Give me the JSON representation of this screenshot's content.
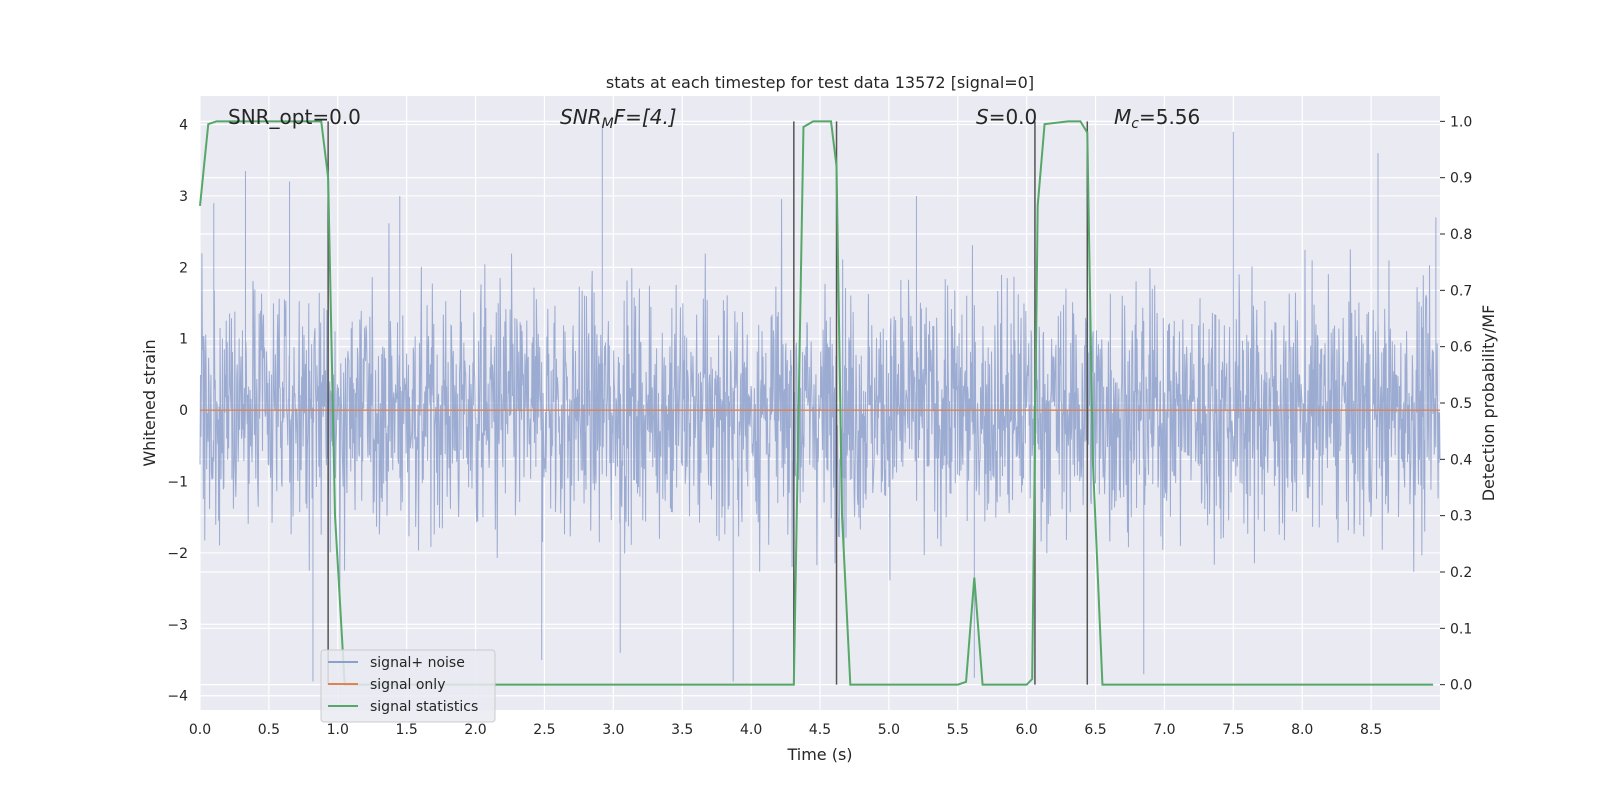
{
  "chart_data": {
    "type": "line",
    "title": "stats at each timestep for test data 13572 [signal=0]",
    "xlabel": "Time (s)",
    "ylabel": "Whitened strain",
    "y2label": "Detection probability/MF",
    "xlim": [
      0.0,
      9.0
    ],
    "ylim": [
      -4.2,
      4.4
    ],
    "y2lim": [
      -0.045,
      1.045
    ],
    "xticks": [
      "0.0",
      "0.5",
      "1.0",
      "1.5",
      "2.0",
      "2.5",
      "3.0",
      "3.5",
      "4.0",
      "4.5",
      "5.0",
      "5.5",
      "6.0",
      "6.5",
      "7.0",
      "7.5",
      "8.0",
      "8.5"
    ],
    "yticks": [
      "4",
      "3",
      "2",
      "1",
      "0",
      "−1",
      "−2",
      "−3",
      "−4"
    ],
    "y2ticks": [
      "1.0",
      "0.9",
      "0.8",
      "0.7",
      "0.6",
      "0.5",
      "0.4",
      "0.3",
      "0.2",
      "0.1",
      "0.0"
    ],
    "annotations": {
      "snr_opt": "SNR_opt=0.0",
      "snr_mf_base": "SNR",
      "snr_mf_sub": "M",
      "snr_mf_rest": "F=[4.]",
      "s_sym": "S",
      "s_val": "=0.0",
      "mc_sym": "M",
      "mc_sub": "c",
      "mc_val": "=5.56"
    },
    "vertical_lines_x": [
      0.93,
      4.31,
      4.62,
      6.06,
      6.44
    ],
    "series": [
      {
        "name": "signal+ noise",
        "color": "#8da0cb",
        "note_range": [
          -3.8,
          4.0
        ],
        "peaks": [
          [
            0.1,
            2.9
          ],
          [
            0.33,
            3.35
          ],
          [
            0.65,
            3.2
          ],
          [
            2.92,
            4.0
          ],
          [
            3.87,
            -3.8
          ],
          [
            7.5,
            3.9
          ],
          [
            8.55,
            3.6
          ],
          [
            8.97,
            2.7
          ],
          [
            6.85,
            -3.7
          ],
          [
            5.62,
            -3.75
          ],
          [
            3.05,
            -3.4
          ],
          [
            2.48,
            -3.5
          ],
          [
            0.82,
            -3.8
          ],
          [
            1.45,
            3.0
          ],
          [
            5.2,
            3.0
          ]
        ]
      },
      {
        "name": "signal only",
        "color": "#dd8452",
        "values_constant": 0.0
      },
      {
        "name": "signal statistics",
        "color": "#55a868",
        "x": [
          0.0,
          0.06,
          0.12,
          0.5,
          0.88,
          0.93,
          0.98,
          1.05,
          2.0,
          3.0,
          4.0,
          4.31,
          4.38,
          4.45,
          4.58,
          4.62,
          4.66,
          4.72,
          5.0,
          5.5,
          5.56,
          5.62,
          5.68,
          6.0,
          6.04,
          6.08,
          6.13,
          6.3,
          6.39,
          6.44,
          6.48,
          6.55,
          7.0,
          8.0,
          8.95
        ],
        "y": [
          0.85,
          0.995,
          1.0,
          1.0,
          1.0,
          0.9,
          0.3,
          0.0,
          0.0,
          0.0,
          0.0,
          0.0,
          0.99,
          1.0,
          1.0,
          0.92,
          0.3,
          0.0,
          0.0,
          0.0,
          0.005,
          0.19,
          0.0,
          0.0,
          0.01,
          0.85,
          0.995,
          1.0,
          1.0,
          0.98,
          0.4,
          0.0,
          0.0,
          0.0,
          0.0
        ]
      }
    ],
    "legend": {
      "placement": "lower-left",
      "entries": [
        "signal+ noise",
        "signal only",
        "signal statistics"
      ]
    },
    "grid": true,
    "colors": {
      "background": "#eaeaf2",
      "grid": "#ffffff",
      "text": "#262626",
      "vline": "#555555"
    }
  }
}
